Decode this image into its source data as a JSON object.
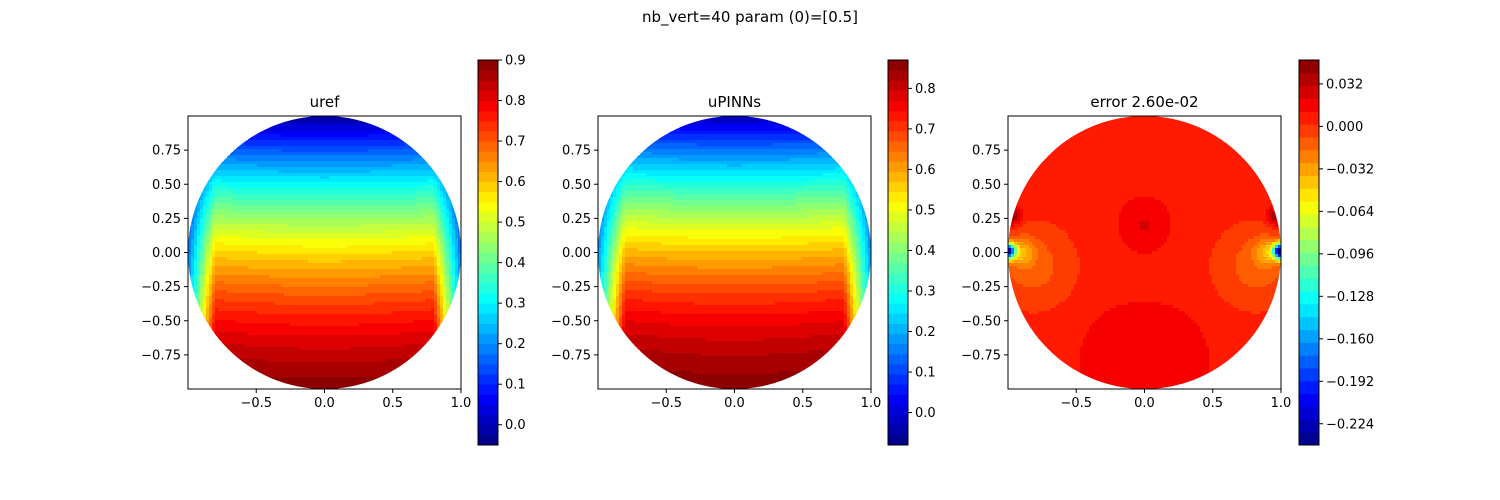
{
  "figure": {
    "suptitle": "nb_vert=40 param (0)=[0.5]"
  },
  "chart_data": [
    {
      "type": "heatmap",
      "title": "uref",
      "xlabel": "",
      "ylabel": "",
      "xlim": [
        -1.0,
        1.0
      ],
      "ylim": [
        -1.0,
        1.0
      ],
      "xticks": [
        -0.5,
        0.0,
        0.5,
        1.0
      ],
      "xtick_labels": [
        "−0.5",
        "0.0",
        "0.5",
        "1.0"
      ],
      "yticks": [
        0.75,
        0.5,
        0.25,
        0.0,
        -0.25,
        -0.5,
        -0.75
      ],
      "ytick_labels": [
        "0.75",
        "0.50",
        "0.25",
        "0.00",
        "−0.25",
        "−0.50",
        "−0.75"
      ],
      "domain": "unit disk",
      "colormap": "jet",
      "color_range": [
        -0.05,
        0.9
      ],
      "colorbar_ticks": [
        0.9,
        0.8,
        0.7,
        0.6,
        0.5,
        0.4,
        0.3,
        0.2,
        0.1,
        0.0
      ],
      "colorbar_tick_labels": [
        "0.9",
        "0.8",
        "0.7",
        "0.6",
        "0.5",
        "0.4",
        "0.3",
        "0.2",
        "0.1",
        "0.0"
      ],
      "levels": 38,
      "field_samples": [
        {
          "x": 0.0,
          "y": 0.95,
          "value": 0.0
        },
        {
          "x": 0.0,
          "y": 0.5,
          "value": 0.2
        },
        {
          "x": 0.0,
          "y": 0.0,
          "value": 0.57
        },
        {
          "x": 0.0,
          "y": -0.5,
          "value": 0.77
        },
        {
          "x": 0.0,
          "y": -0.95,
          "value": 0.9
        },
        {
          "x": -0.99,
          "y": 0.0,
          "value": 0.2
        },
        {
          "x": 0.99,
          "y": 0.0,
          "value": 0.2
        }
      ]
    },
    {
      "type": "heatmap",
      "title": "uPINNs",
      "xlabel": "",
      "ylabel": "",
      "xlim": [
        -1.0,
        1.0
      ],
      "ylim": [
        -1.0,
        1.0
      ],
      "xticks": [
        -0.5,
        0.0,
        0.5,
        1.0
      ],
      "xtick_labels": [
        "−0.5",
        "0.0",
        "0.5",
        "1.0"
      ],
      "yticks": [
        0.75,
        0.5,
        0.25,
        0.0,
        -0.25,
        -0.5,
        -0.75
      ],
      "ytick_labels": [
        "0.75",
        "0.50",
        "0.25",
        "0.00",
        "−0.25",
        "−0.50",
        "−0.75"
      ],
      "domain": "unit disk",
      "colormap": "jet",
      "color_range": [
        -0.08,
        0.87
      ],
      "colorbar_ticks": [
        0.8,
        0.7,
        0.6,
        0.5,
        0.4,
        0.3,
        0.2,
        0.1,
        0.0
      ],
      "colorbar_tick_labels": [
        "0.8",
        "0.7",
        "0.6",
        "0.5",
        "0.4",
        "0.3",
        "0.2",
        "0.1",
        "0.0"
      ],
      "levels": 38,
      "field_samples": [
        {
          "x": 0.0,
          "y": 0.95,
          "value": 0.0
        },
        {
          "x": 0.0,
          "y": 0.5,
          "value": 0.2
        },
        {
          "x": 0.0,
          "y": 0.0,
          "value": 0.57
        },
        {
          "x": 0.0,
          "y": -0.5,
          "value": 0.77
        },
        {
          "x": 0.0,
          "y": -0.95,
          "value": 0.87
        },
        {
          "x": -0.99,
          "y": 0.0,
          "value": 0.25
        },
        {
          "x": 0.99,
          "y": 0.0,
          "value": 0.25
        }
      ]
    },
    {
      "type": "heatmap",
      "title": "error 2.60e-02",
      "xlabel": "",
      "ylabel": "",
      "xlim": [
        -1.0,
        1.0
      ],
      "ylim": [
        -1.0,
        1.0
      ],
      "xticks": [
        -0.5,
        0.0,
        0.5,
        1.0
      ],
      "xtick_labels": [
        "−0.5",
        "0.0",
        "0.5",
        "1.0"
      ],
      "yticks": [
        0.75,
        0.5,
        0.25,
        0.0,
        -0.25,
        -0.5,
        -0.75
      ],
      "ytick_labels": [
        "0.75",
        "0.50",
        "0.25",
        "0.00",
        "−0.25",
        "−0.50",
        "−0.75"
      ],
      "domain": "unit disk",
      "colormap": "jet",
      "color_range": [
        -0.24,
        0.05
      ],
      "colorbar_ticks": [
        0.032,
        0.0,
        -0.032,
        -0.064,
        -0.096,
        -0.128,
        -0.16,
        -0.192,
        -0.224
      ],
      "colorbar_tick_labels": [
        "0.032",
        "0.000",
        "−0.032",
        "−0.064",
        "−0.096",
        "−0.128",
        "−0.160",
        "−0.192",
        "−0.224"
      ],
      "levels": 30,
      "field_samples": [
        {
          "x": 0.0,
          "y": 0.0,
          "value": 0.01
        },
        {
          "x": 0.0,
          "y": 0.2,
          "value": 0.02
        },
        {
          "x": 0.0,
          "y": -0.7,
          "value": 0.02
        },
        {
          "x": -0.7,
          "y": -0.1,
          "value": -0.005
        },
        {
          "x": 0.7,
          "y": -0.1,
          "value": -0.005
        },
        {
          "x": -0.97,
          "y": 0.25,
          "value": 0.045
        },
        {
          "x": 0.97,
          "y": 0.25,
          "value": 0.045
        },
        {
          "x": -0.99,
          "y": 0.0,
          "value": -0.2
        },
        {
          "x": 0.99,
          "y": 0.0,
          "value": -0.235
        }
      ]
    }
  ]
}
